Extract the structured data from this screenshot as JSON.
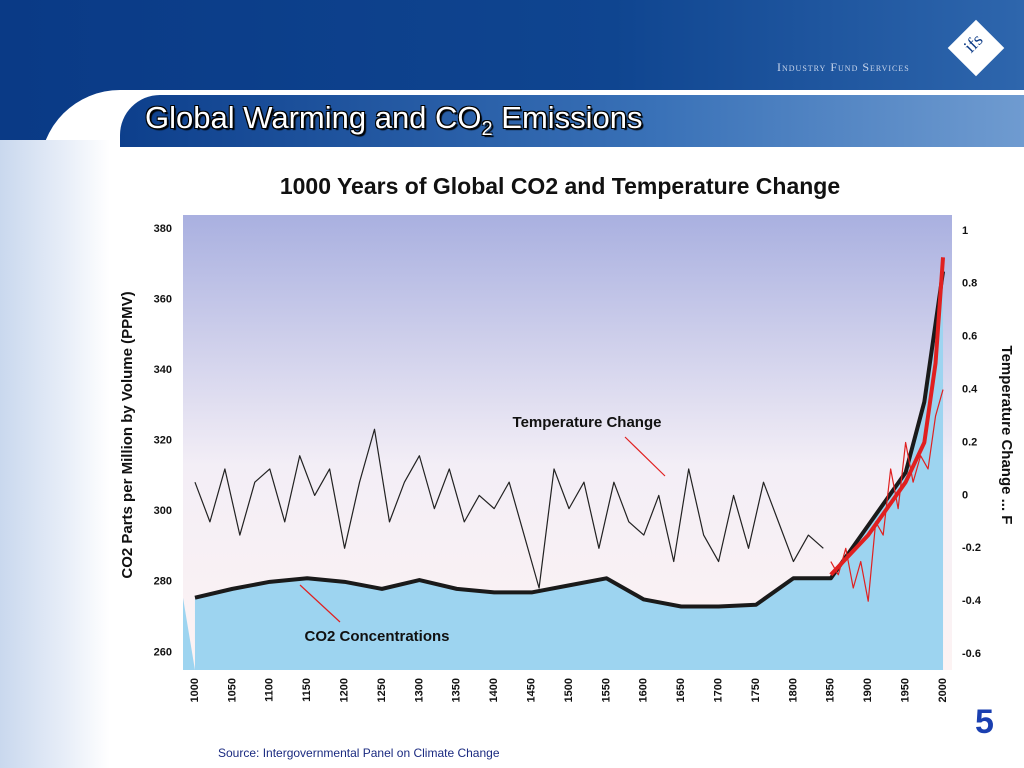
{
  "slide": {
    "title": [
      "Global Warming and CO",
      "2",
      " Emissions"
    ],
    "logo_text": "Industry Fund Services",
    "logo_mark": "ifs",
    "page_number": "5",
    "source": "Source:  Intergovernmental Panel on Climate Change"
  },
  "chart_data": {
    "type": "line",
    "title": "1000 Years of Global CO2 and Temperature Change",
    "ylabel": "CO2 Parts per Million by Volume (PPMV)",
    "y2label": "Temperature Change ... F",
    "annotations": [
      "Temperature Change",
      "CO2 Concentrations"
    ],
    "xlim": [
      984,
      2012
    ],
    "xticks": [
      1000,
      1050,
      1100,
      1150,
      1200,
      1250,
      1300,
      1350,
      1400,
      1450,
      1500,
      1550,
      1600,
      1650,
      1700,
      1750,
      1800,
      1850,
      1900,
      1950,
      2000
    ],
    "ylim": [
      255,
      384
    ],
    "yticks": [
      260,
      280,
      300,
      320,
      340,
      360,
      380
    ],
    "y2lim": [
      -0.66,
      1.06
    ],
    "y2ticks": [
      -0.6,
      -0.4,
      -0.2,
      0,
      0.2,
      0.4,
      0.6,
      0.8,
      1
    ],
    "series": [
      {
        "color": "#9dd4f0",
        "axis": "y",
        "fill": true,
        "x": [
          1000,
          1050,
          1100,
          1150,
          1200,
          1250,
          1300,
          1350,
          1400,
          1450,
          1500,
          1550,
          1600,
          1650,
          1700,
          1750,
          1800,
          1850,
          1900,
          1950,
          1975,
          2000
        ],
        "values": [
          275.5,
          278,
          280,
          281,
          280,
          278,
          280.5,
          278,
          277,
          277,
          279,
          281,
          275,
          273,
          273,
          273.5,
          281,
          281,
          296,
          311,
          331,
          368
        ]
      },
      {
        "color": "#222222",
        "axis": "y2",
        "x": [
          1000,
          1020,
          1040,
          1060,
          1080,
          1100,
          1120,
          1140,
          1160,
          1180,
          1200,
          1220,
          1240,
          1260,
          1280,
          1300,
          1320,
          1340,
          1360,
          1380,
          1400,
          1420,
          1440,
          1460,
          1480,
          1500,
          1520,
          1540,
          1560,
          1580,
          1600,
          1620,
          1640,
          1660,
          1680,
          1700,
          1720,
          1740,
          1760,
          1780,
          1800,
          1820,
          1840
        ],
        "values": [
          0.05,
          -0.1,
          0.1,
          -0.15,
          0.05,
          0.1,
          -0.1,
          0.15,
          0,
          0.1,
          -0.2,
          0.05,
          0.25,
          -0.1,
          0.05,
          0.15,
          -0.05,
          0.1,
          -0.1,
          0,
          -0.05,
          0.05,
          -0.15,
          -0.35,
          0.1,
          -0.05,
          0.05,
          -0.2,
          0.05,
          -0.1,
          -0.15,
          0,
          -0.25,
          0.1,
          -0.15,
          -0.25,
          0,
          -0.2,
          0.05,
          -0.1,
          -0.25,
          -0.15,
          -0.2
        ]
      },
      {
        "color": "#e02020",
        "axis": "y2",
        "x": [
          1850,
          1860,
          1870,
          1880,
          1890,
          1900,
          1910,
          1920,
          1930,
          1940,
          1950,
          1960,
          1970,
          1980,
          1990,
          2000
        ],
        "values": [
          -0.25,
          -0.3,
          -0.2,
          -0.35,
          -0.25,
          -0.4,
          -0.1,
          -0.15,
          0.1,
          -0.05,
          0.2,
          0.05,
          0.15,
          0.1,
          0.3,
          0.4
        ]
      },
      {
        "color": "#e02020",
        "axis": "y2",
        "width": 4,
        "x": [
          1850,
          1900,
          1950,
          1975,
          1990,
          2000
        ],
        "values": [
          -0.3,
          -0.15,
          0.05,
          0.2,
          0.5,
          0.9
        ]
      }
    ]
  }
}
